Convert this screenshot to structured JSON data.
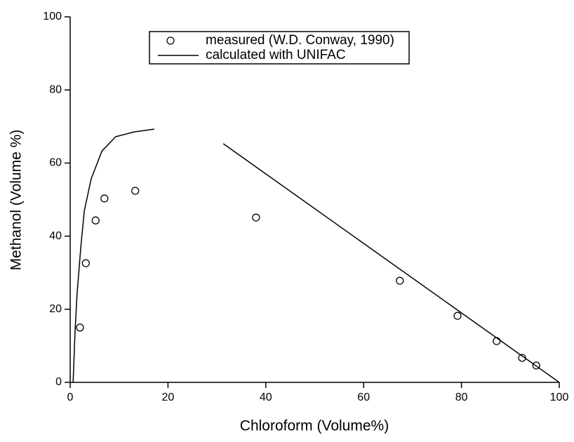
{
  "chart_data": {
    "type": "scatter",
    "x_label": "Chloroform (Volume%)",
    "y_label": "Methanol (Volume %)",
    "xlim": [
      0,
      100
    ],
    "ylim": [
      0,
      100
    ],
    "xticks": [
      0,
      20,
      40,
      60,
      80,
      100
    ],
    "yticks": [
      0,
      20,
      40,
      60,
      80,
      100
    ],
    "legend": "top",
    "series": [
      {
        "name": "measured (W.D. Conway, 1990)",
        "color": "#000000",
        "style": "marker",
        "x": [
          2.0,
          3.2,
          5.2,
          7.0,
          13.3,
          38.0,
          67.4,
          79.2,
          87.2,
          92.4,
          95.3
        ],
        "values": [
          15.0,
          32.6,
          44.3,
          50.3,
          52.4,
          45.1,
          27.8,
          18.2,
          11.3,
          6.7,
          4.6
        ]
      },
      {
        "name": "calculated with UNIFAC",
        "color": "#000000",
        "style": "line",
        "x": [
          0.6,
          1.0,
          1.4,
          2.2,
          2.9,
          4.3,
          6.5,
          9.3,
          13.0,
          17.2,
          null,
          31.3,
          100
        ],
        "values": [
          0,
          14,
          24,
          37.4,
          47,
          55.7,
          63.3,
          67.2,
          68.5,
          69.3,
          null,
          65.3,
          0
        ]
      }
    ]
  }
}
